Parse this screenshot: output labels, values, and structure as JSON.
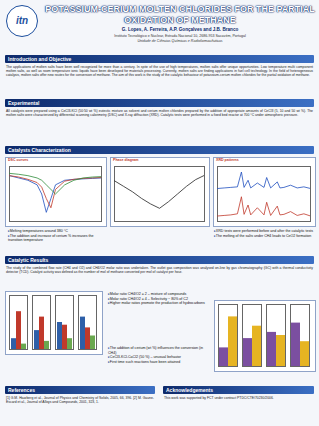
{
  "header": {
    "title": "POTASSIUM-CERIUM MOLTEN CHLORIDES FOR THE PARTIAL OXIDATION OF METHANE",
    "logo": "itn",
    "authors": "G. Lopes, A. Ferreira, A.P. Gonçalves and J.B. Branco",
    "affiliation": "Instituto Tecnológico e Nuclear, Estrada Nacional 10, 2686-953 Sacavém, Portugal",
    "unit": "Unidade de Ciências Químicas e Radiofarmacêuticas"
  },
  "sections": [
    {
      "heading": "Introduction and Objective",
      "text": "The applications of molten salts have been well recognized for more than a century. In spite of the use of high temperatures, molten salts offer unique opportunities. Low temperature multi component molten salts, as well as room temperature ionic liquids have been developed for materials processing. Currently, molten salts are finding applications in fuel cell technology. In the field of heterogeneous catalysis, molten salts offer new routes for the conversion of methane. The aim of this work is the study of the catalytic behaviour of potassium-cerium molten chlorides for the partial oxidation of methane."
    },
    {
      "heading": "Experimental",
      "text": "All catalysts were prepared using a CeCl3-KCl (50:50 wt %) eutectic mixture as solvent and cerium molten chlorides prepared by the addition of appropriate amounts of CeCl3 (5, 10 and 50 wt %). The molten salts were characterized by differential scanning calorimetry (DSC) and X-ray diffraction (XRD). Catalytic tests were performed in a fixed bed reactor at 700 °C under atmospheric pressure."
    },
    {
      "heading": "Catalysts Characterization"
    },
    {
      "heading": "Catalytic Results",
      "text": "The study of the combined flow rate (CH4 and O2) and CH4/O2 molar ratio was undertaken. The outlet gas composition was analysed on-line by gas chromatography (GC) with a thermal conductivity detector (TCD). Catalyst activity was defined as the number of mol of methane converted per mol of catalyst per hour."
    },
    {
      "heading": "References",
      "text": "[1] G.M. Haarberg et al., Journal of Physics and Chemistry of Solids, 2005, 66, 396. [2] M. Gaune-Escard et al., Journal of Alloys and Compounds, 2001, 323, 1."
    },
    {
      "heading": "Acknowledgements",
      "text": "This work was supported by FCT under contract PTDC/CTE/70230/2006."
    }
  ],
  "bullets": [
    [
      "Melting temperatures around 380 °C",
      "The addition and increase of cerium % increases the transition temperature"
    ],
    [
      "XRD tests were performed before and after the catalytic tests",
      "The melting of the salts under CH4 leads to CeO2 formation"
    ],
    [
      "Molar ratio CH4/O2 = 2 – mixture of compounds",
      "Molar ratio CH4/O2 = 4 – Selectivity ~ 80% of C2",
      "Higher molar ratios promote the production of hydrocarbons"
    ],
    [
      "The addition of cerium (wt %) influences the conversion (in CH4)",
      "CeCl3-KCl-CaCl2 (50 %) – unusual behavior",
      "First time such reactions have been attained"
    ]
  ],
  "chart_data": [
    {
      "type": "line",
      "title": "DSC curves",
      "x": [
        300,
        320,
        340,
        360,
        370,
        380,
        390,
        400,
        420,
        440,
        460,
        480,
        500
      ],
      "xlim": [
        300,
        500
      ],
      "ylim": [
        -10,
        2
      ],
      "tick_labels": false,
      "series": [
        {
          "color": "#1f4fbf",
          "values": [
            0,
            -0.5,
            -1,
            -2,
            -4,
            -8,
            -5,
            -2,
            -1,
            -0.8,
            -0.7,
            -0.6,
            -0.5
          ]
        },
        {
          "color": "#c0392b",
          "values": [
            0,
            -0.3,
            -0.8,
            -1.5,
            -2.5,
            -5,
            -7,
            -3,
            -1.2,
            -0.8,
            -0.6,
            -0.5,
            -0.4
          ]
        },
        {
          "color": "#2e8b3a",
          "values": [
            0.5,
            0.3,
            0,
            -0.5,
            -1,
            -2,
            -3,
            -4,
            -2,
            -1,
            -0.5,
            -0.3,
            -0.2
          ]
        }
      ]
    },
    {
      "type": "line",
      "title": "Phase diagram",
      "x": [
        0,
        10,
        20,
        30,
        40,
        50,
        60,
        70,
        80,
        90,
        100
      ],
      "xlim": [
        0,
        100
      ],
      "ylim": [
        400,
        900
      ],
      "tick_labels": false,
      "series": [
        {
          "color": "#222222",
          "values": [
            770,
            720,
            670,
            610,
            560,
            520,
            580,
            650,
            720,
            780,
            820
          ]
        }
      ]
    },
    {
      "type": "line",
      "title": "XRD patterns",
      "x": [
        10,
        15,
        20,
        25,
        28,
        30,
        33,
        35,
        40,
        45,
        47,
        50,
        55,
        57,
        60,
        65,
        70,
        75,
        80
      ],
      "xlim": [
        10,
        80
      ],
      "ylim": [
        0,
        100
      ],
      "tick_labels": false,
      "series": [
        {
          "color": "#1f4fbf",
          "values": [
            60,
            61,
            62,
            63,
            90,
            62,
            75,
            61,
            70,
            62,
            80,
            61,
            72,
            61,
            62,
            66,
            61,
            63,
            60
          ]
        },
        {
          "color": "#c0392b",
          "values": [
            10,
            11,
            12,
            14,
            45,
            13,
            30,
            12,
            25,
            12,
            35,
            11,
            28,
            12,
            13,
            18,
            11,
            14,
            10
          ]
        }
      ]
    },
    {
      "type": "bar",
      "categories": [
        null,
        null,
        null,
        null
      ],
      "ylim": [
        0,
        100
      ],
      "tick_labels": false,
      "series": [
        {
          "color": "#2e5fa8",
          "values": [
            20,
            35,
            50,
            60
          ]
        },
        {
          "color": "#c0392b",
          "values": [
            70,
            60,
            45,
            40
          ]
        },
        {
          "color": "#6aa84f",
          "values": [
            10,
            15,
            20,
            25
          ]
        }
      ]
    },
    {
      "type": "bar",
      "categories": [
        null,
        null,
        null,
        null
      ],
      "ylim": [
        0,
        100
      ],
      "tick_labels": false,
      "series": [
        {
          "color": "#7b4fa0",
          "values": [
            30,
            45,
            55,
            70
          ]
        },
        {
          "color": "#e6b422",
          "values": [
            80,
            65,
            50,
            40
          ]
        }
      ]
    }
  ]
}
